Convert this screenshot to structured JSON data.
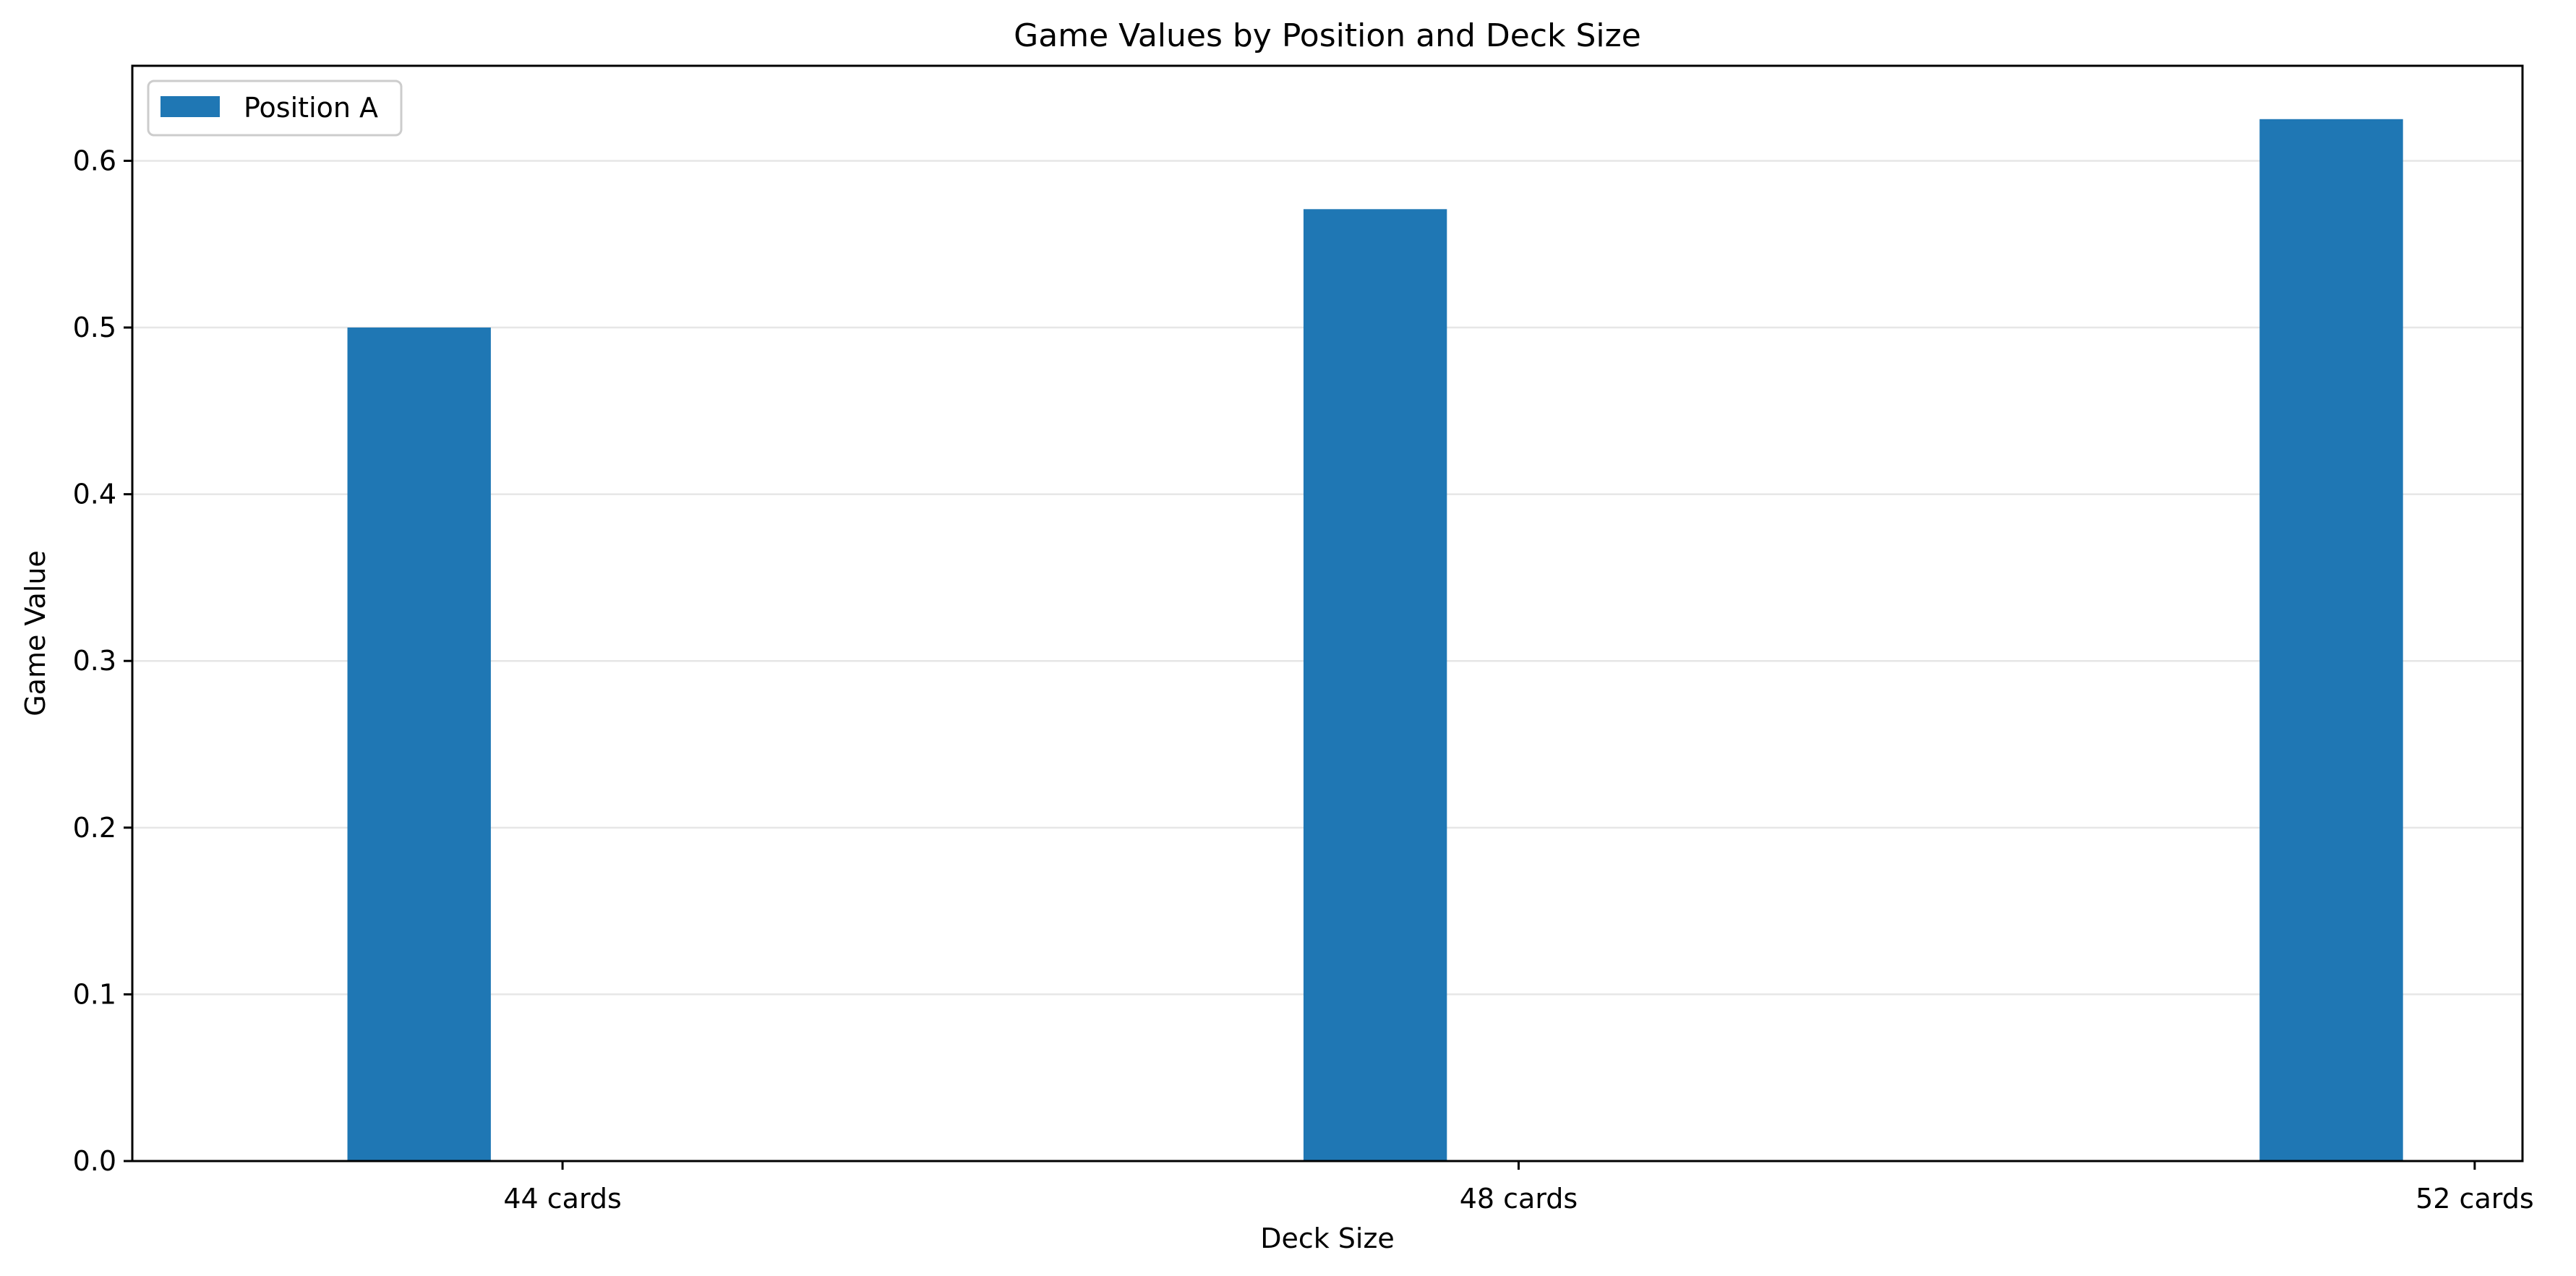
{
  "chart_data": {
    "type": "bar",
    "title": "Game Values by Position and Deck Size",
    "xlabel": "Deck Size",
    "ylabel": "Game Value",
    "categories": [
      "44 cards",
      "48 cards",
      "52 cards"
    ],
    "series": [
      {
        "name": "Position A",
        "color": "#1f77b4",
        "values": [
          0.5,
          0.571,
          0.625
        ]
      }
    ],
    "ylim": [
      0,
      0.657
    ],
    "yticks": [
      "0.0",
      "0.1",
      "0.2",
      "0.3",
      "0.4",
      "0.5",
      "0.6"
    ],
    "grid": "y",
    "legend_position": "upper-left"
  }
}
